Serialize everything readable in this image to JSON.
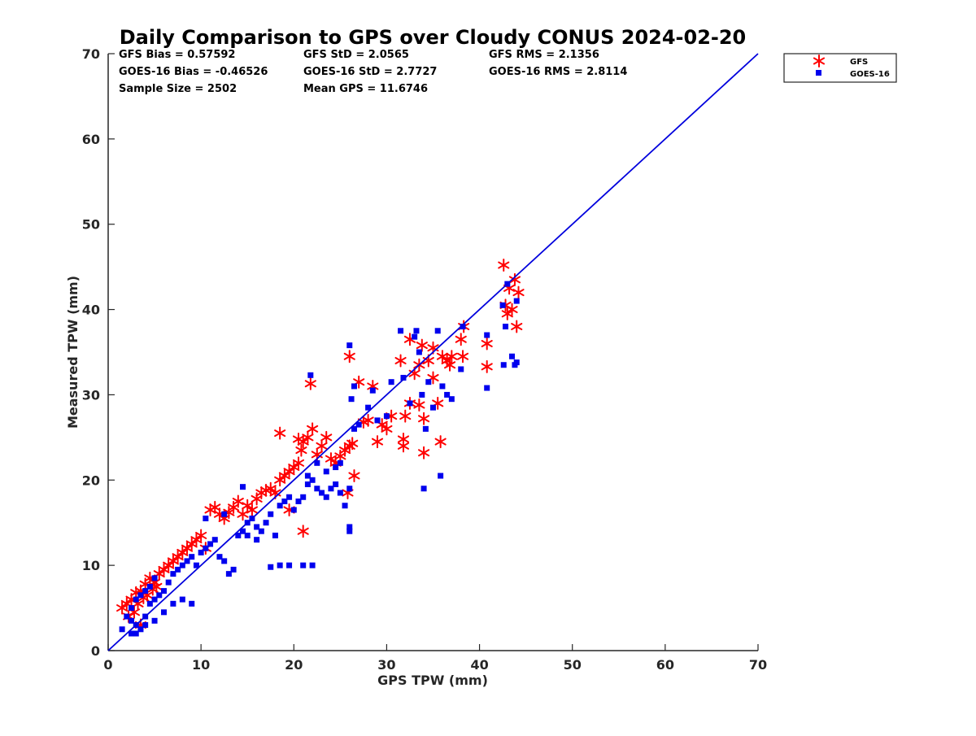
{
  "chart_data": {
    "type": "scatter",
    "title": "Daily Comparison to GPS over Cloudy CONUS 2024-02-20",
    "xlabel": "GPS TPW (mm)",
    "ylabel": "Measured TPW (mm)",
    "xlim": [
      0,
      70
    ],
    "ylim": [
      0,
      70
    ],
    "xticks": [
      "0",
      "10",
      "20",
      "30",
      "40",
      "50",
      "60",
      "70"
    ],
    "yticks": [
      "0",
      "10",
      "20",
      "30",
      "40",
      "50",
      "60",
      "70"
    ],
    "grid": false,
    "legend_position": "outside-top-right",
    "stats": [
      "GFS Bias = 0.57592",
      "GFS StD = 2.0565",
      "GFS RMS = 2.1356",
      "GOES-16 Bias = -0.46526",
      "GOES-16 StD = 2.7727",
      "GOES-16 RMS = 2.8114",
      "Sample Size = 2502",
      "Mean GPS = 11.6746"
    ],
    "reference_line": {
      "x": [
        0,
        70
      ],
      "y": [
        0,
        70
      ],
      "color": "#0000dd"
    },
    "series": [
      {
        "name": "GFS",
        "marker": "asterisk",
        "color": "#ff0000",
        "points": [
          [
            1.5,
            5.0
          ],
          [
            2.0,
            5.5
          ],
          [
            2.5,
            6.0
          ],
          [
            3.0,
            6.8
          ],
          [
            3.5,
            7.0
          ],
          [
            4.0,
            7.8
          ],
          [
            4.5,
            8.5
          ],
          [
            5.0,
            8.0
          ],
          [
            5.5,
            9.0
          ],
          [
            6.0,
            9.5
          ],
          [
            2.8,
            4.5
          ],
          [
            3.2,
            5.5
          ],
          [
            3.8,
            6.2
          ],
          [
            4.2,
            6.5
          ],
          [
            4.8,
            7.2
          ],
          [
            5.2,
            7.5
          ],
          [
            6.5,
            10.0
          ],
          [
            7.0,
            10.5
          ],
          [
            7.5,
            11.0
          ],
          [
            8.0,
            11.5
          ],
          [
            8.5,
            12.0
          ],
          [
            9.0,
            12.5
          ],
          [
            9.5,
            13.0
          ],
          [
            10.0,
            13.5
          ],
          [
            10.5,
            12.0
          ],
          [
            11.0,
            16.5
          ],
          [
            11.5,
            16.8
          ],
          [
            12.0,
            16.0
          ],
          [
            12.5,
            15.5
          ],
          [
            13.0,
            16.2
          ],
          [
            13.5,
            16.8
          ],
          [
            14.0,
            17.5
          ],
          [
            14.5,
            16.0
          ],
          [
            15.0,
            17.0
          ],
          [
            15.5,
            16.5
          ],
          [
            16.0,
            17.8
          ],
          [
            16.5,
            18.5
          ],
          [
            17.0,
            18.8
          ],
          [
            17.5,
            19.0
          ],
          [
            18.0,
            18.5
          ],
          [
            18.5,
            20.0
          ],
          [
            19.0,
            20.5
          ],
          [
            19.5,
            21.0
          ],
          [
            20.0,
            21.5
          ],
          [
            20.5,
            22.0
          ],
          [
            21.0,
            24.5
          ],
          [
            21.5,
            25.0
          ],
          [
            22.0,
            26.0
          ],
          [
            22.5,
            23.0
          ],
          [
            23.0,
            24.0
          ],
          [
            23.5,
            25.0
          ],
          [
            24.0,
            22.5
          ],
          [
            24.5,
            22.0
          ],
          [
            25.0,
            22.8
          ],
          [
            25.5,
            23.5
          ],
          [
            26.0,
            24.0
          ],
          [
            26.5,
            20.5
          ],
          [
            25.8,
            18.5
          ],
          [
            18.5,
            25.5
          ],
          [
            20.5,
            24.8
          ],
          [
            21.0,
            14.0
          ],
          [
            19.5,
            16.5
          ],
          [
            20.8,
            23.5
          ],
          [
            26.0,
            34.5
          ],
          [
            27.0,
            31.5
          ],
          [
            28.5,
            31.0
          ],
          [
            29.0,
            24.5
          ],
          [
            30.0,
            26.0
          ],
          [
            31.5,
            34.0
          ],
          [
            31.8,
            24.8
          ],
          [
            31.8,
            24.0
          ],
          [
            32.0,
            27.5
          ],
          [
            32.5,
            29.0
          ],
          [
            33.0,
            32.5
          ],
          [
            33.5,
            33.5
          ],
          [
            33.5,
            28.8
          ],
          [
            34.0,
            27.2
          ],
          [
            34.0,
            23.2
          ],
          [
            34.5,
            34.0
          ],
          [
            35.0,
            35.5
          ],
          [
            35.0,
            32.0
          ],
          [
            35.5,
            29.0
          ],
          [
            35.8,
            24.5
          ],
          [
            36.0,
            34.5
          ],
          [
            36.5,
            34.0
          ],
          [
            37.0,
            34.5
          ],
          [
            38.0,
            36.5
          ],
          [
            38.2,
            34.5
          ],
          [
            38.3,
            38.0
          ],
          [
            40.8,
            33.3
          ],
          [
            40.8,
            36.0
          ],
          [
            42.6,
            45.2
          ],
          [
            43.0,
            39.5
          ],
          [
            43.2,
            42.5
          ],
          [
            43.5,
            40.0
          ],
          [
            43.8,
            43.5
          ],
          [
            44.0,
            38.0
          ],
          [
            44.2,
            42.0
          ],
          [
            42.8,
            40.5
          ],
          [
            21.8,
            31.3
          ],
          [
            26.3,
            24.3
          ],
          [
            27.5,
            26.8
          ],
          [
            28.0,
            27.0
          ],
          [
            29.5,
            26.5
          ],
          [
            30.5,
            27.5
          ],
          [
            32.5,
            36.5
          ],
          [
            33.8,
            35.8
          ],
          [
            36.8,
            33.5
          ],
          [
            2.2,
            4.0
          ],
          [
            3.5,
            3.0
          ]
        ]
      },
      {
        "name": "GOES-16",
        "marker": "square",
        "color": "#0000ee",
        "points": [
          [
            1.5,
            2.5
          ],
          [
            2.0,
            4.0
          ],
          [
            2.5,
            3.5
          ],
          [
            3.0,
            3.0
          ],
          [
            3.5,
            2.5
          ],
          [
            4.0,
            4.0
          ],
          [
            4.5,
            5.5
          ],
          [
            5.0,
            6.0
          ],
          [
            5.5,
            6.5
          ],
          [
            6.0,
            7.0
          ],
          [
            2.5,
            5.0
          ],
          [
            3.0,
            6.0
          ],
          [
            3.5,
            6.5
          ],
          [
            4.0,
            7.0
          ],
          [
            4.5,
            7.5
          ],
          [
            5.0,
            8.5
          ],
          [
            6.5,
            8.0
          ],
          [
            7.0,
            9.0
          ],
          [
            7.5,
            9.5
          ],
          [
            8.0,
            10.0
          ],
          [
            8.5,
            10.5
          ],
          [
            9.0,
            11.0
          ],
          [
            9.5,
            10.0
          ],
          [
            10.0,
            11.5
          ],
          [
            10.5,
            12.0
          ],
          [
            11.0,
            12.5
          ],
          [
            11.5,
            13.0
          ],
          [
            12.0,
            11.0
          ],
          [
            12.5,
            10.5
          ],
          [
            13.0,
            9.0
          ],
          [
            13.5,
            9.5
          ],
          [
            14.0,
            13.5
          ],
          [
            14.5,
            14.0
          ],
          [
            15.0,
            15.0
          ],
          [
            15.5,
            15.5
          ],
          [
            16.0,
            14.5
          ],
          [
            16.5,
            14.0
          ],
          [
            17.0,
            15.0
          ],
          [
            17.5,
            16.0
          ],
          [
            18.0,
            13.5
          ],
          [
            18.5,
            17.0
          ],
          [
            19.0,
            17.5
          ],
          [
            19.5,
            18.0
          ],
          [
            20.0,
            16.5
          ],
          [
            20.5,
            17.5
          ],
          [
            21.0,
            18.0
          ],
          [
            21.5,
            19.5
          ],
          [
            22.0,
            20.0
          ],
          [
            22.5,
            19.0
          ],
          [
            23.0,
            18.5
          ],
          [
            23.5,
            18.0
          ],
          [
            24.0,
            19.0
          ],
          [
            24.5,
            19.5
          ],
          [
            25.0,
            18.5
          ],
          [
            25.5,
            17.0
          ],
          [
            26.0,
            19.0
          ],
          [
            26.0,
            14.5
          ],
          [
            26.0,
            14.0
          ],
          [
            21.8,
            32.3
          ],
          [
            26.0,
            35.8
          ],
          [
            26.2,
            29.5
          ],
          [
            26.5,
            26.0
          ],
          [
            27.0,
            26.5
          ],
          [
            28.0,
            28.5
          ],
          [
            28.5,
            30.5
          ],
          [
            29.0,
            27.0
          ],
          [
            30.0,
            27.5
          ],
          [
            30.5,
            31.5
          ],
          [
            31.5,
            37.5
          ],
          [
            31.8,
            32.0
          ],
          [
            32.5,
            29.0
          ],
          [
            33.0,
            36.8
          ],
          [
            33.2,
            37.5
          ],
          [
            33.5,
            35.0
          ],
          [
            33.8,
            30.0
          ],
          [
            34.0,
            19.0
          ],
          [
            34.2,
            26.0
          ],
          [
            34.5,
            31.5
          ],
          [
            35.0,
            28.5
          ],
          [
            35.5,
            37.5
          ],
          [
            35.8,
            20.5
          ],
          [
            36.0,
            31.0
          ],
          [
            36.5,
            30.0
          ],
          [
            37.0,
            29.5
          ],
          [
            38.0,
            33.0
          ],
          [
            38.2,
            38.0
          ],
          [
            40.8,
            37.0
          ],
          [
            40.8,
            30.8
          ],
          [
            42.5,
            40.5
          ],
          [
            42.6,
            33.5
          ],
          [
            42.8,
            38.0
          ],
          [
            43.0,
            43.0
          ],
          [
            43.5,
            34.5
          ],
          [
            43.8,
            33.5
          ],
          [
            44.0,
            41.0
          ],
          [
            44.0,
            33.8
          ],
          [
            18.5,
            10.0
          ],
          [
            19.5,
            10.0
          ],
          [
            21.0,
            10.0
          ],
          [
            22.0,
            10.0
          ],
          [
            17.5,
            9.8
          ],
          [
            16.0,
            13.0
          ],
          [
            15.0,
            13.5
          ],
          [
            14.5,
            19.2
          ],
          [
            12.5,
            16.0
          ],
          [
            10.5,
            15.5
          ],
          [
            9.0,
            5.5
          ],
          [
            8.0,
            6.0
          ],
          [
            7.0,
            5.5
          ],
          [
            6.0,
            4.5
          ],
          [
            5.0,
            3.5
          ],
          [
            4.0,
            3.0
          ],
          [
            3.0,
            2.0
          ],
          [
            2.5,
            2.0
          ],
          [
            26.5,
            31.0
          ],
          [
            25.0,
            22.0
          ],
          [
            24.5,
            21.5
          ],
          [
            23.5,
            21.0
          ],
          [
            22.5,
            22.0
          ],
          [
            21.5,
            20.5
          ]
        ]
      }
    ]
  }
}
